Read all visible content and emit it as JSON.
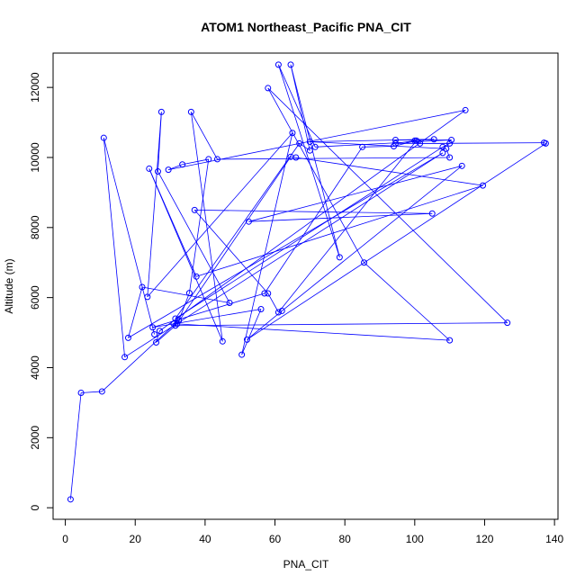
{
  "chart_data": {
    "type": "line",
    "title": "ATOM1 Northeast_Pacific PNA_CIT",
    "xlabel": "PNA_CIT",
    "ylabel": "Altitude (m)",
    "xlim": [
      -3.5,
      141
    ],
    "ylim": [
      -330,
      12980
    ],
    "xticks": [
      0,
      20,
      40,
      60,
      80,
      100,
      120,
      140
    ],
    "yticks": [
      0,
      2000,
      4000,
      6000,
      8000,
      10000,
      12000
    ],
    "grid": false,
    "legend": "none",
    "series": [
      {
        "line_color": "#0000ff",
        "marker": "open-circle",
        "points": [
          [
            1.5,
            240
          ],
          [
            4.5,
            3280
          ],
          [
            10.5,
            3320
          ],
          [
            32.5,
            5350
          ],
          [
            35.5,
            6130
          ],
          [
            41,
            9950
          ],
          [
            33.5,
            9800
          ],
          [
            29.5,
            9650
          ],
          [
            114.5,
            11350
          ],
          [
            27,
            5050
          ],
          [
            26,
            4720
          ],
          [
            31.5,
            5200
          ],
          [
            126.5,
            5280
          ],
          [
            58,
            11980
          ],
          [
            85.5,
            7000
          ],
          [
            110,
            4780
          ],
          [
            32,
            5250
          ],
          [
            64.5,
            10020
          ],
          [
            66,
            10000
          ],
          [
            119.5,
            9200
          ],
          [
            37.5,
            6600
          ],
          [
            24,
            9680
          ],
          [
            45,
            4750
          ],
          [
            36,
            11300
          ],
          [
            43.5,
            9950
          ],
          [
            110,
            10000
          ],
          [
            109,
            10250
          ],
          [
            70,
            10450
          ],
          [
            105.5,
            10520
          ],
          [
            94.5,
            10500
          ],
          [
            110.5,
            10500
          ],
          [
            71.5,
            10300
          ],
          [
            61,
            12650
          ],
          [
            78.5,
            7150
          ],
          [
            64.5,
            12650
          ],
          [
            70,
            10200
          ],
          [
            67,
            10400
          ],
          [
            31.5,
            5400
          ],
          [
            108,
            10300
          ],
          [
            110,
            10400
          ],
          [
            94.5,
            10400
          ],
          [
            100,
            10480
          ],
          [
            101.5,
            10400
          ],
          [
            137,
            10420
          ],
          [
            137.5,
            10400
          ],
          [
            52,
            4800
          ],
          [
            62,
            5620
          ],
          [
            113.5,
            9760
          ],
          [
            52.5,
            8170
          ],
          [
            105,
            8400
          ],
          [
            37,
            8500
          ],
          [
            58,
            6120
          ],
          [
            61,
            5580
          ],
          [
            100.5,
            10480
          ],
          [
            94,
            10320
          ],
          [
            85,
            10300
          ],
          [
            57,
            6120
          ],
          [
            25,
            5150
          ],
          [
            31,
            5250
          ],
          [
            56,
            5670
          ],
          [
            50.5,
            4370
          ],
          [
            65,
            10700
          ],
          [
            23.5,
            6020
          ],
          [
            27.5,
            11300
          ],
          [
            26.5,
            9600
          ],
          [
            47,
            5850
          ],
          [
            22,
            6300
          ],
          [
            18,
            4850
          ],
          [
            108,
            10130
          ],
          [
            17,
            4300
          ],
          [
            11,
            10560
          ],
          [
            25.5,
            4950
          ]
        ]
      }
    ]
  }
}
